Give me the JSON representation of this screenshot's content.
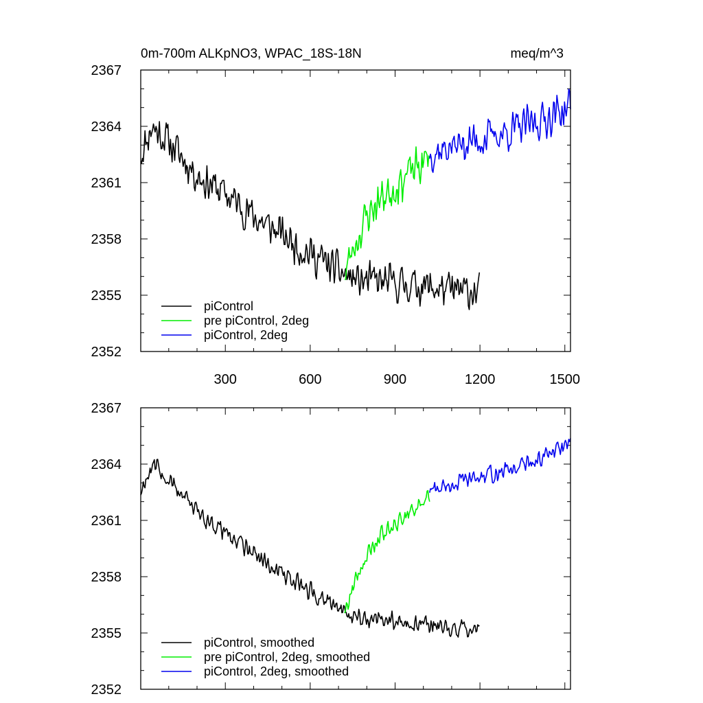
{
  "chart_data": [
    {
      "type": "line",
      "title_left": "0m-700m ALKpNO3, WPAC_18S-18N",
      "title_right": "meq/m^3",
      "xlim": [
        1,
        1520
      ],
      "ylim": [
        2352,
        2367
      ],
      "xticks": [
        300,
        600,
        900,
        1200,
        1500
      ],
      "yticks": [
        2352,
        2355,
        2358,
        2361,
        2364,
        2367
      ],
      "legend_position": "bottom-left",
      "grid": false,
      "series": [
        {
          "name": "piControl",
          "color": "#000000",
          "noise": 1.2,
          "seed": 11,
          "x": [
            1,
            40,
            100,
            200,
            300,
            400,
            500,
            600,
            700,
            760,
            900,
            1000,
            1100,
            1200
          ],
          "y": [
            2362.5,
            2364.0,
            2363.2,
            2361.4,
            2360.4,
            2359.2,
            2358.2,
            2357.2,
            2356.3,
            2355.8,
            2355.6,
            2355.5,
            2355.2,
            2355.2
          ]
        },
        {
          "name": "pre piControl, 2deg",
          "color": "#00ee00",
          "noise": 1.3,
          "seed": 23,
          "x": [
            722,
            760,
            800,
            850,
            900,
            950,
            1000,
            1022
          ],
          "y": [
            2356.2,
            2357.8,
            2359.2,
            2360.2,
            2360.8,
            2361.5,
            2362.0,
            2362.4
          ]
        },
        {
          "name": "piControl, 2deg",
          "color": "#0000ee",
          "noise": 1.2,
          "seed": 37,
          "x": [
            1022,
            1100,
            1200,
            1300,
            1400,
            1500,
            1520
          ],
          "y": [
            2362.6,
            2362.9,
            2363.3,
            2363.7,
            2364.2,
            2364.9,
            2365.2
          ]
        }
      ]
    },
    {
      "type": "line",
      "title_left": "",
      "title_right": "",
      "xlim": [
        1,
        1520
      ],
      "ylim": [
        2352,
        2367
      ],
      "xticks": [
        300,
        600,
        900,
        1200,
        1500
      ],
      "yticks": [
        2352,
        2355,
        2358,
        2361,
        2364,
        2367
      ],
      "legend_position": "bottom-left",
      "grid": false,
      "series": [
        {
          "name": "piControl, smoothed",
          "color": "#000000",
          "noise": 0.6,
          "seed": 11,
          "x": [
            1,
            40,
            100,
            200,
            300,
            400,
            500,
            600,
            700,
            760,
            900,
            1000,
            1100,
            1200
          ],
          "y": [
            2362.5,
            2364.0,
            2363.2,
            2361.4,
            2360.4,
            2359.2,
            2358.2,
            2357.2,
            2356.3,
            2355.8,
            2355.6,
            2355.5,
            2355.2,
            2355.2
          ]
        },
        {
          "name": "pre piControl, 2deg, smoothed",
          "color": "#00ee00",
          "noise": 0.6,
          "seed": 23,
          "x": [
            722,
            760,
            800,
            850,
            900,
            950,
            1000,
            1022
          ],
          "y": [
            2356.2,
            2357.8,
            2359.2,
            2360.2,
            2360.8,
            2361.5,
            2362.0,
            2362.4
          ]
        },
        {
          "name": "piControl, 2deg, smoothed",
          "color": "#0000ee",
          "noise": 0.55,
          "seed": 37,
          "x": [
            1022,
            1100,
            1200,
            1300,
            1400,
            1500,
            1520
          ],
          "y": [
            2362.6,
            2362.9,
            2363.3,
            2363.7,
            2364.2,
            2364.9,
            2365.2
          ]
        }
      ]
    }
  ]
}
